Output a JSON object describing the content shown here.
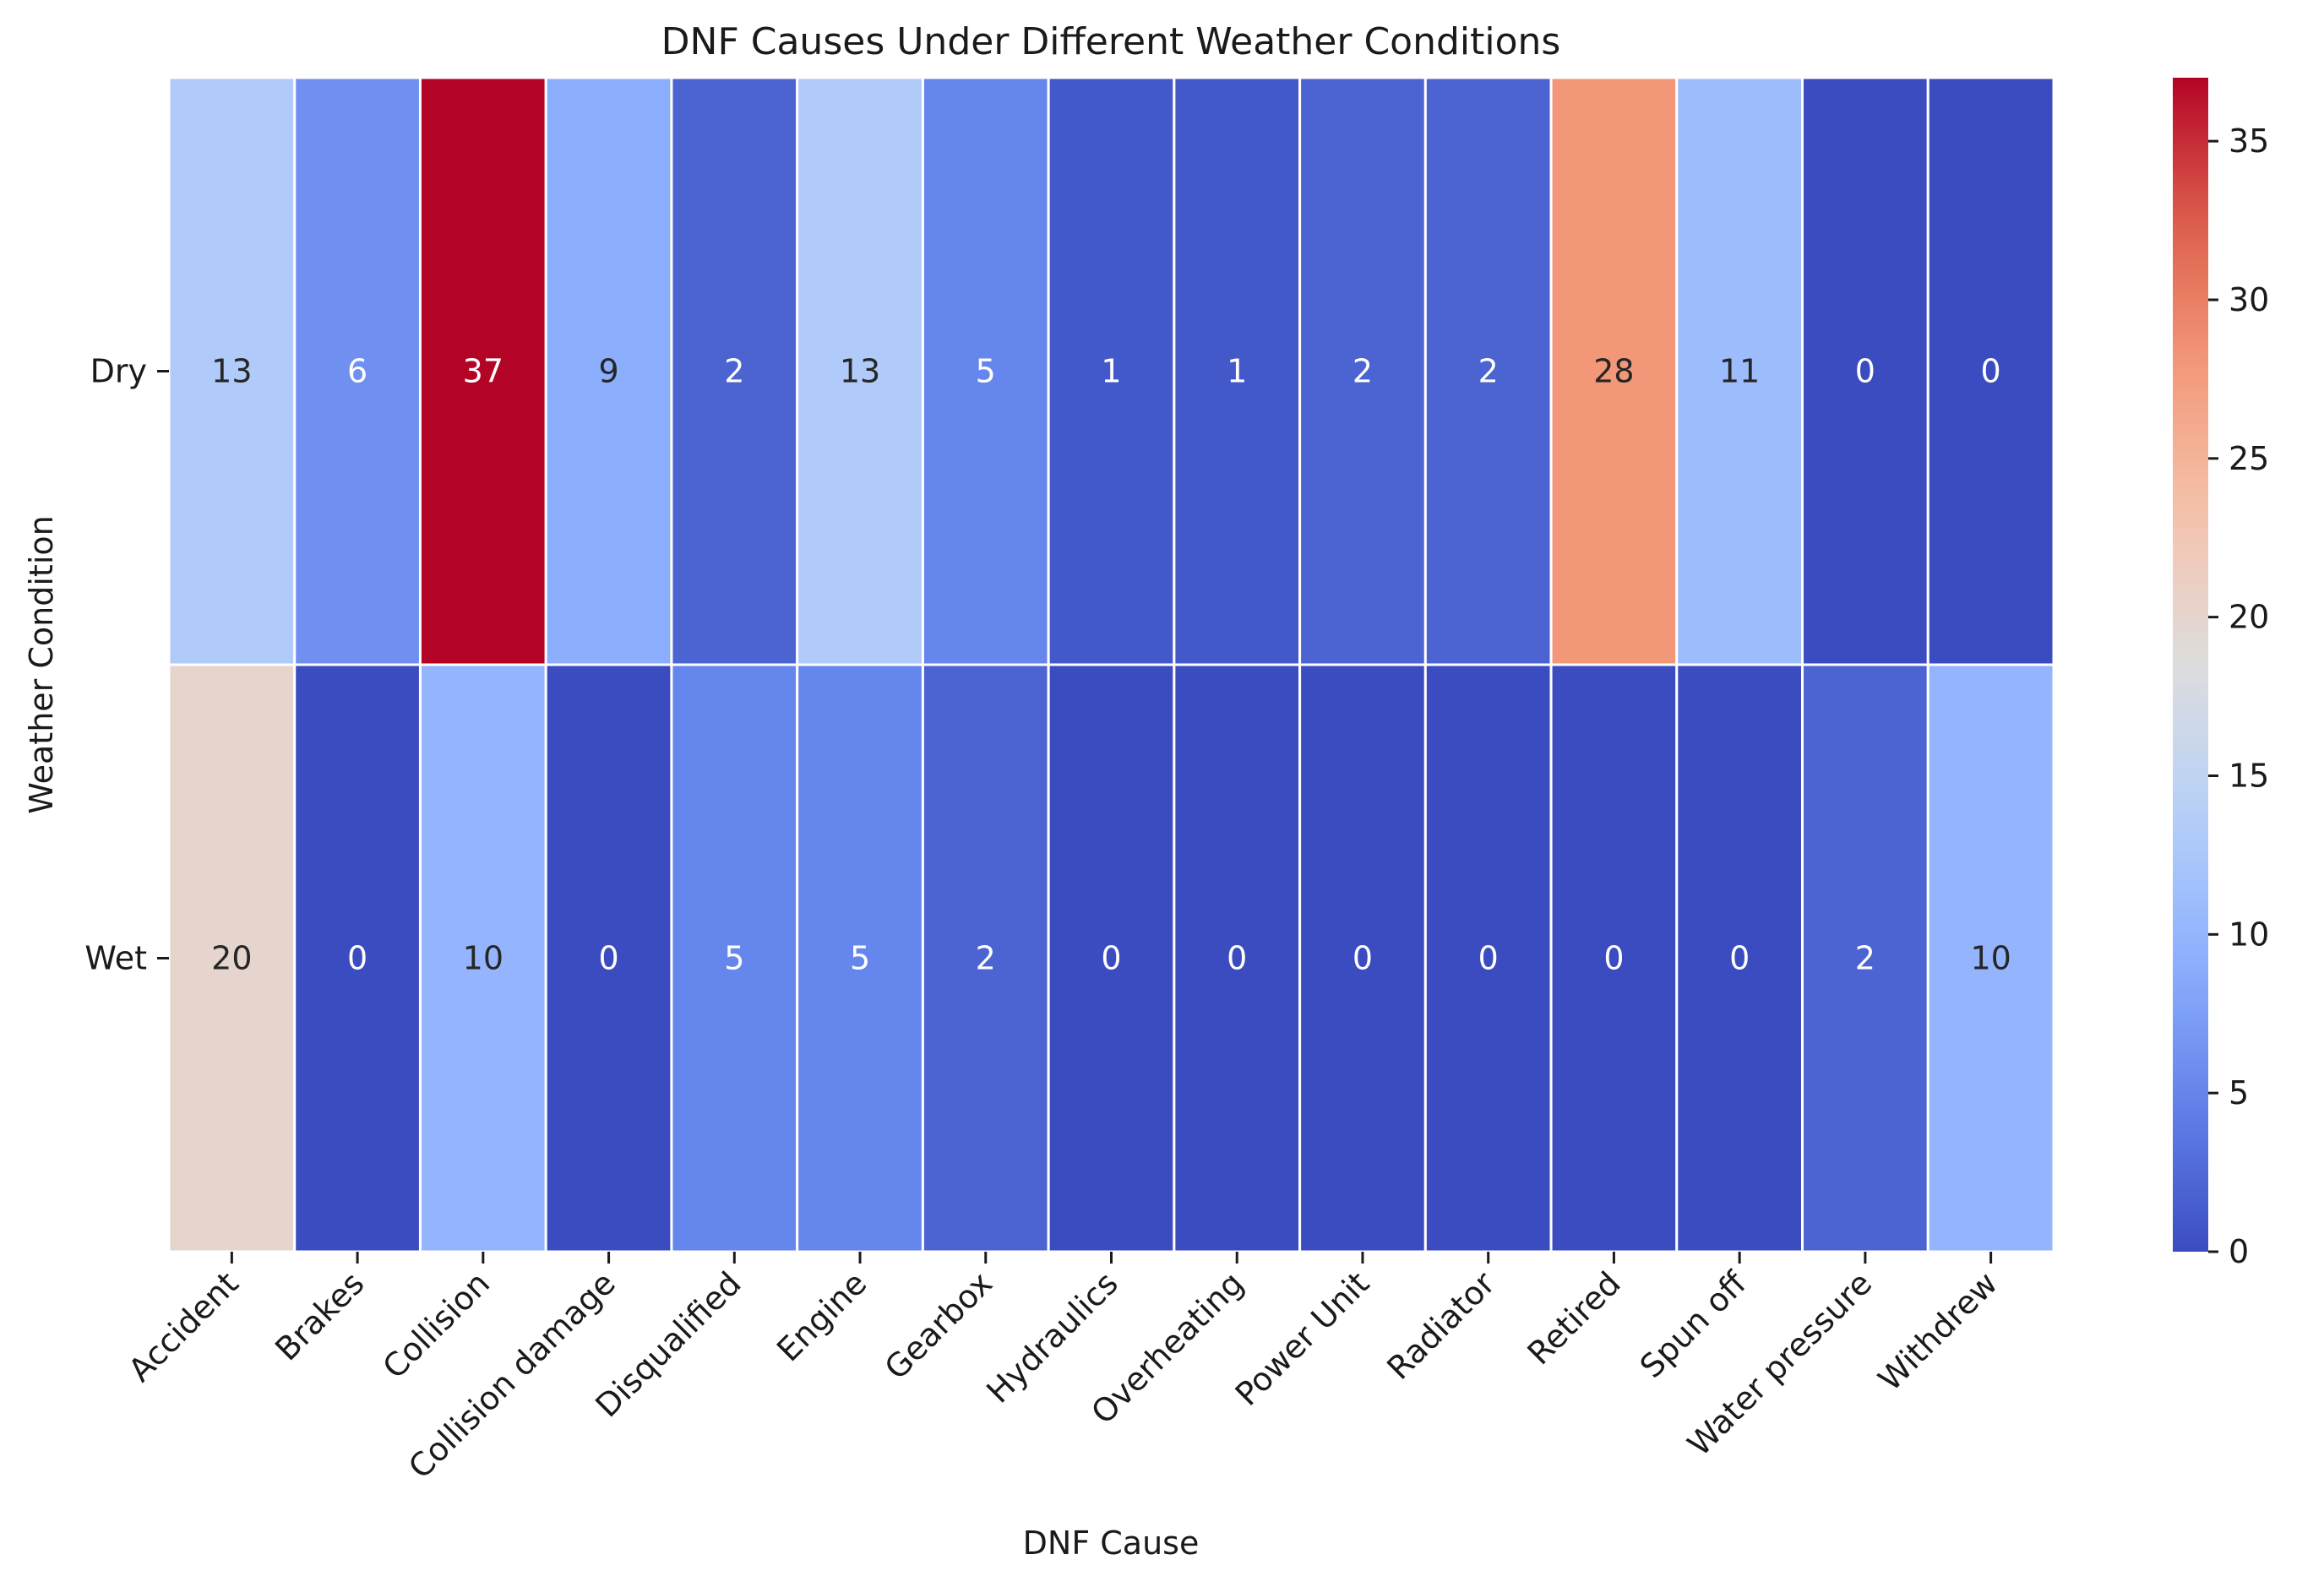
{
  "chart_data": {
    "type": "heatmap",
    "title": "DNF Causes Under Different Weather Conditions",
    "xlabel": "DNF Cause",
    "ylabel": "Weather Condition",
    "x_categories": [
      "Accident",
      "Brakes",
      "Collision",
      "Collision damage",
      "Disqualified",
      "Engine",
      "Gearbox",
      "Hydraulics",
      "Overheating",
      "Power Unit",
      "Radiator",
      "Retired",
      "Spun off",
      "Water pressure",
      "Withdrew"
    ],
    "y_categories": [
      "Dry",
      "Wet"
    ],
    "values": [
      [
        13,
        6,
        37,
        9,
        2,
        13,
        5,
        1,
        1,
        2,
        2,
        28,
        11,
        0,
        0
      ],
      [
        20,
        0,
        10,
        0,
        5,
        5,
        2,
        0,
        0,
        0,
        0,
        0,
        0,
        2,
        10
      ]
    ],
    "annotated": true,
    "colormap": "coolwarm",
    "colorbar": {
      "vmin": 0,
      "vmax": 37,
      "ticks": [
        0,
        5,
        10,
        15,
        20,
        25,
        30,
        35
      ]
    },
    "grid": false,
    "legend": "colorbar-right"
  }
}
